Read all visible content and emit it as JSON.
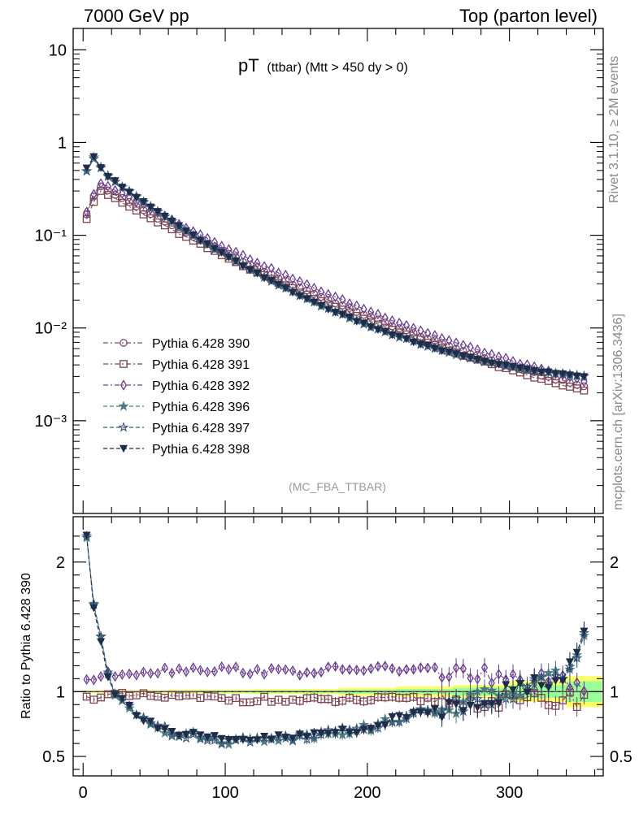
{
  "header": {
    "left": "7000 GeV pp",
    "right": "Top (parton level)"
  },
  "side_text": {
    "upper": "Rivet 3.1.10, ≥ 2M events",
    "lower": "mcplots.cern.ch [arXiv:1306.3436]"
  },
  "colors": {
    "series_390": "#7b4f6e",
    "series_391": "#7b4551",
    "series_392": "#6a3d8c",
    "series_396": "#4d7a80",
    "series_397": "#3a5a78",
    "series_398": "#1f2d4a",
    "band_outer": "#ffff66",
    "band_inner": "#99ff99"
  },
  "chart_data": [
    {
      "type": "scatter",
      "title": "pT",
      "title_suffix": "(ttbar) (Mtt > 450 dy > 0)",
      "annotation": "(MC_FBA_TTBAR)",
      "xlabel": "",
      "ylabel": "",
      "xlim": [
        -7,
        366
      ],
      "ylim": [
        0.0001,
        17
      ],
      "yscale": "log",
      "y_tick_labels": [
        "10⁻³",
        "10⁻²",
        "10⁻¹",
        "1",
        "10"
      ],
      "legend_position": "bottom-left",
      "series": [
        {
          "name": "Pythia 6.428 390",
          "marker": "circle-open",
          "line": "dash-dot",
          "x0": 2.5,
          "dx": 5,
          "n": 71,
          "model": {
            "type": "shape",
            "peak": 0.34,
            "peakX": 12,
            "lowY": 0.17,
            "b": 0.00155,
            "c": 5.6e-06,
            "dipScale": 1.0
          }
        },
        {
          "name": "Pythia 6.428 391",
          "marker": "square-open",
          "line": "dash-dot",
          "x0": 2.5,
          "dx": 5,
          "n": 71,
          "model": {
            "type": "shape",
            "peak": 0.32,
            "peakX": 12,
            "lowY": 0.16,
            "b": 0.00155,
            "c": 5.6e-06,
            "dipScale": 0.95
          }
        },
        {
          "name": "Pythia 6.428 392",
          "marker": "diamond-open",
          "line": "dash-dot",
          "x0": 2.5,
          "dx": 5,
          "n": 71,
          "model": {
            "type": "shape",
            "peak": 0.36,
            "peakX": 12,
            "lowY": 0.18,
            "b": 0.00155,
            "c": 5.6e-06,
            "dipScale": 1.15
          }
        },
        {
          "name": "Pythia 6.428 396",
          "marker": "star-filled",
          "line": "dash",
          "x0": 2.5,
          "dx": 5,
          "n": 71,
          "model": {
            "type": "peak",
            "peak": 0.7,
            "peakX": 7,
            "lowY": 0.5,
            "b": 0.0018,
            "c": 6.4e-06
          }
        },
        {
          "name": "Pythia 6.428 397",
          "marker": "star-open",
          "line": "dash",
          "x0": 2.5,
          "dx": 5,
          "n": 71,
          "model": {
            "type": "peak",
            "peak": 0.69,
            "peakX": 7,
            "lowY": 0.5,
            "b": 0.0018,
            "c": 6.4e-06
          }
        },
        {
          "name": "Pythia 6.428 398",
          "marker": "triangle-down-filled",
          "line": "dash",
          "x0": 2.5,
          "dx": 5,
          "n": 71,
          "model": {
            "type": "peak",
            "peak": 0.71,
            "peakX": 7,
            "lowY": 0.52,
            "b": 0.0018,
            "c": 6.4e-06
          }
        }
      ]
    },
    {
      "type": "scatter",
      "title": "",
      "xlabel": "",
      "ylabel": "Ratio to Pythia 6.428 390",
      "xlim": [
        -7,
        366
      ],
      "ylim": [
        0.35,
        2.35
      ],
      "yscale": "linear",
      "x_ticks": [
        0,
        100,
        200,
        300
      ],
      "y_ticks": [
        0.5,
        1,
        2
      ],
      "reference_line": 1,
      "series": [
        {
          "name": "Pythia 6.428 391",
          "marker": "square-open",
          "line": "dash-dot",
          "x0": 2.5,
          "dx": 5,
          "n": 71,
          "model": {
            "type": "flat",
            "points": [
              [
                0,
                0.94
              ],
              [
                10,
                0.97
              ],
              [
                60,
                0.96
              ],
              [
                150,
                0.93
              ],
              [
                250,
                0.94
              ],
              [
                300,
                0.92
              ],
              [
                360,
                0.95
              ]
            ],
            "noise": 0.025
          }
        },
        {
          "name": "Pythia 6.428 392",
          "marker": "diamond-open",
          "line": "dash-dot",
          "x0": 2.5,
          "dx": 5,
          "n": 71,
          "model": {
            "type": "flat",
            "points": [
              [
                0,
                1.09
              ],
              [
                30,
                1.15
              ],
              [
                80,
                1.18
              ],
              [
                150,
                1.15
              ],
              [
                200,
                1.18
              ],
              [
                260,
                1.16
              ],
              [
                300,
                1.08
              ],
              [
                360,
                1.05
              ]
            ],
            "noise": 0.03
          }
        },
        {
          "name": "Pythia 6.428 396",
          "marker": "star-filled",
          "line": "dash",
          "x0": 2.5,
          "dx": 5,
          "n": 71,
          "model": {
            "type": "dip",
            "points": [
              [
                2.5,
                2.2
              ],
              [
                7.5,
                1.67
              ],
              [
                12.5,
                1.4
              ],
              [
                20,
                1.0
              ],
              [
                40,
                0.82
              ],
              [
                60,
                0.69
              ],
              [
                100,
                0.62
              ],
              [
                150,
                0.65
              ],
              [
                200,
                0.72
              ],
              [
                240,
                0.85
              ],
              [
                260,
                0.88
              ],
              [
                280,
                0.95
              ],
              [
                310,
                1.02
              ],
              [
                340,
                1.15
              ],
              [
                360,
                1.6
              ]
            ],
            "noise": 0.03
          }
        },
        {
          "name": "Pythia 6.428 397",
          "marker": "star-open",
          "line": "dash",
          "x0": 2.5,
          "dx": 5,
          "n": 71,
          "model": {
            "type": "dip",
            "points": [
              [
                2.5,
                2.2
              ],
              [
                7.5,
                1.67
              ],
              [
                12.5,
                1.4
              ],
              [
                20,
                1.0
              ],
              [
                40,
                0.82
              ],
              [
                60,
                0.69
              ],
              [
                100,
                0.62
              ],
              [
                150,
                0.65
              ],
              [
                200,
                0.72
              ],
              [
                240,
                0.85
              ],
              [
                260,
                0.88
              ],
              [
                280,
                0.95
              ],
              [
                310,
                1.02
              ],
              [
                340,
                1.15
              ],
              [
                360,
                1.6
              ]
            ],
            "noise": 0.03
          }
        },
        {
          "name": "Pythia 6.428 398",
          "marker": "triangle-down-filled",
          "line": "dash",
          "x0": 2.5,
          "dx": 5,
          "n": 71,
          "model": {
            "type": "dip",
            "points": [
              [
                2.5,
                2.2
              ],
              [
                7.5,
                1.67
              ],
              [
                12.5,
                1.4
              ],
              [
                20,
                1.0
              ],
              [
                40,
                0.82
              ],
              [
                60,
                0.69
              ],
              [
                100,
                0.62
              ],
              [
                150,
                0.65
              ],
              [
                200,
                0.72
              ],
              [
                240,
                0.85
              ],
              [
                260,
                0.88
              ],
              [
                280,
                0.95
              ],
              [
                310,
                1.02
              ],
              [
                340,
                1.15
              ],
              [
                360,
                1.6
              ]
            ],
            "noise": 0.03
          }
        }
      ],
      "uncertainty_band": {
        "x_edges": [
          0,
          60,
          120,
          180,
          220,
          260,
          300,
          340,
          365
        ],
        "outer_halfwidth": [
          0.01,
          0.015,
          0.02,
          0.03,
          0.04,
          0.05,
          0.08,
          0.12,
          0.12
        ],
        "inner_halfwidth": [
          0.005,
          0.008,
          0.01,
          0.015,
          0.02,
          0.03,
          0.05,
          0.08,
          0.08
        ]
      }
    }
  ]
}
